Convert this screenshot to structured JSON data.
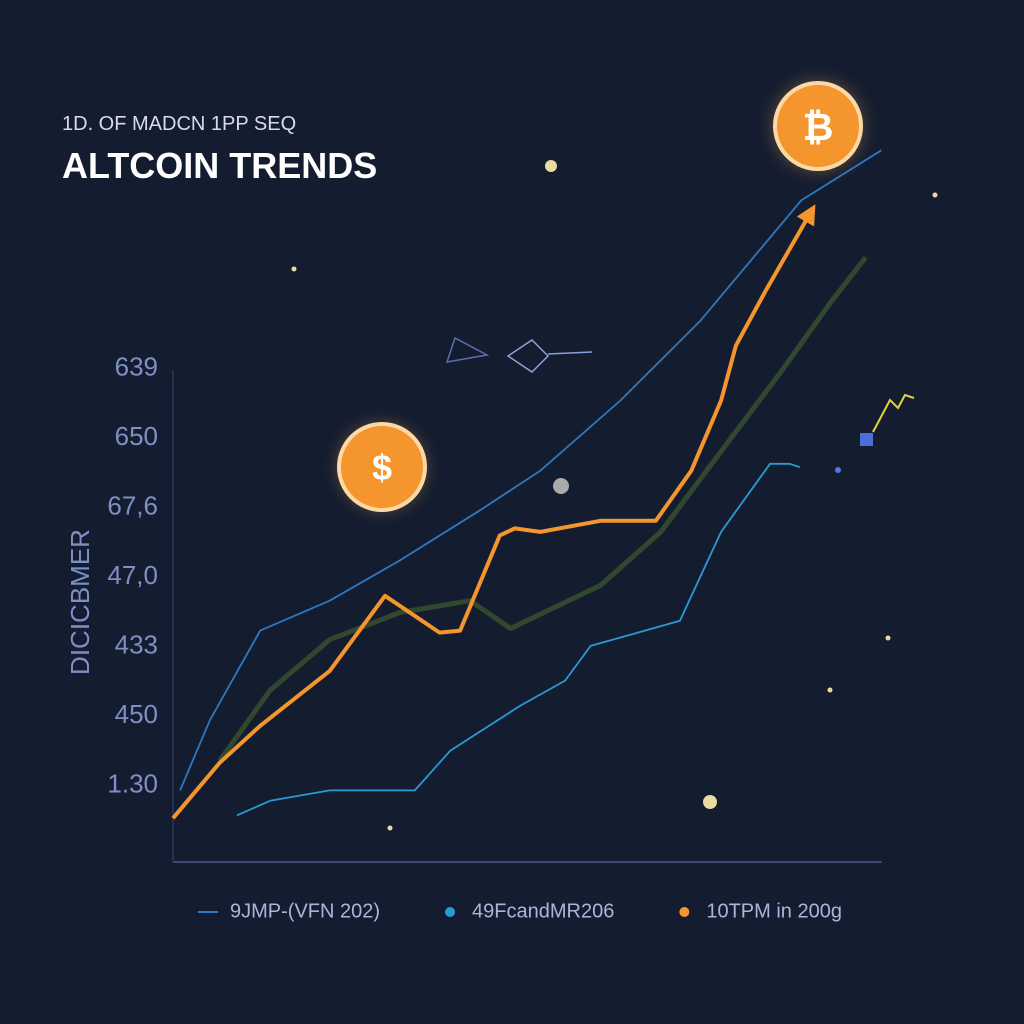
{
  "chart_data": {
    "type": "line",
    "subtitle": "1D. OF MADCN 1PP SEQ",
    "title": "ALTCOIN TRENDS",
    "y_label": "DICICBMER",
    "xlim": [
      0,
      100
    ],
    "ylim": [
      -1.1,
      10
    ],
    "yticks": [
      {
        "value": 6,
        "label": "639"
      },
      {
        "value": 5,
        "label": "650"
      },
      {
        "value": 4,
        "label": "67,6"
      },
      {
        "value": 3,
        "label": "47,0"
      },
      {
        "value": 2,
        "label": "433"
      },
      {
        "value": 1,
        "label": "450"
      },
      {
        "value": 0,
        "label": "1.30"
      }
    ],
    "series": [
      {
        "name": "9JMP-(VFN 202)",
        "color": "#2f78bf",
        "x": [
          1,
          5.2,
          12.3,
          22.1,
          32,
          43.3,
          51.8,
          63.1,
          74.4,
          88.6,
          99.9
        ],
        "values": [
          -0.07,
          0.94,
          2.23,
          2.66,
          3.24,
          3.96,
          4.53,
          5.54,
          6.69,
          8.42,
          9.14
        ]
      },
      {
        "name": "49FcandMR206",
        "color": "#2a9ad4",
        "x": [
          9,
          13.7,
          22.1,
          34.1,
          39.1,
          49,
          55.3,
          58.9,
          71.5,
          77.3,
          84.2,
          87,
          88.4
        ],
        "values": [
          -0.43,
          -0.22,
          -0.07,
          -0.07,
          0.5,
          1.15,
          1.51,
          2.01,
          2.37,
          3.65,
          4.63,
          4.63,
          4.58
        ]
      },
      {
        "name": "10TPM in 200g",
        "color": "#f4952e",
        "x": [
          0,
          6.6,
          12.3,
          22.1,
          29.9,
          37.6,
          40.5,
          46.1,
          48.2,
          51.8,
          60.3,
          68.1,
          73.1,
          77.3,
          79.4,
          83.6,
          89.9
        ],
        "values": [
          -0.47,
          0.33,
          0.86,
          1.65,
          2.73,
          2.2,
          2.23,
          3.6,
          3.7,
          3.65,
          3.81,
          3.81,
          4.53,
          5.54,
          6.33,
          7.12,
          8.24
        ]
      },
      {
        "color": "#34502e",
        "x": [
          6.6,
          13.7,
          22.1,
          32,
          41.9,
          47.6,
          60.3,
          68.8,
          77.3,
          85.8,
          92.8,
          97.7
        ],
        "values": [
          0.36,
          1.37,
          2.1,
          2.49,
          2.66,
          2.26,
          2.88,
          3.65,
          4.81,
          5.96,
          6.96,
          7.6
        ]
      }
    ]
  }
}
